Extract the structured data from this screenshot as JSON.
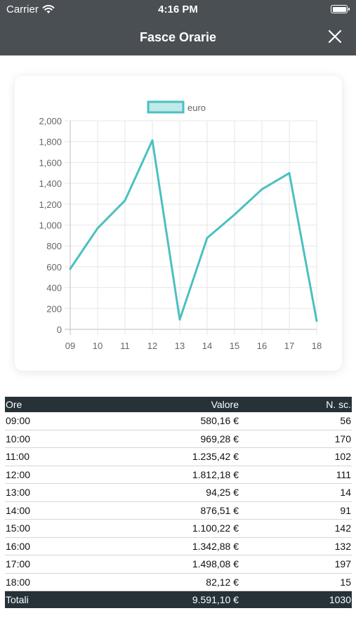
{
  "status_bar": {
    "carrier": "Carrier",
    "time": "4:16 PM"
  },
  "nav": {
    "title": "Fasce Orarie"
  },
  "chart_data": {
    "type": "line",
    "x": [
      "09",
      "10",
      "11",
      "12",
      "13",
      "14",
      "15",
      "16",
      "17",
      "18"
    ],
    "series": [
      {
        "name": "euro",
        "values": [
          580.16,
          969.28,
          1235.42,
          1812.18,
          94.25,
          876.51,
          1100.22,
          1342.88,
          1498.08,
          82.12
        ]
      }
    ],
    "yticks": [
      "0",
      "200",
      "400",
      "600",
      "800",
      "1,000",
      "1,200",
      "1,400",
      "1,600",
      "1,800",
      "2,000"
    ],
    "ylim": [
      0,
      2000
    ],
    "grid": true,
    "legend": "top-center",
    "color": "#4bc0c0"
  },
  "table": {
    "headers": [
      "Ore",
      "Valore",
      "N. sc."
    ],
    "rows": [
      [
        "09:00",
        "580,16 €",
        "56"
      ],
      [
        "10:00",
        "969,28 €",
        "170"
      ],
      [
        "11:00",
        "1.235,42 €",
        "102"
      ],
      [
        "12:00",
        "1.812,18 €",
        "111"
      ],
      [
        "13:00",
        "94,25 €",
        "14"
      ],
      [
        "14:00",
        "876,51 €",
        "91"
      ],
      [
        "15:00",
        "1.100,22 €",
        "142"
      ],
      [
        "16:00",
        "1.342,88 €",
        "132"
      ],
      [
        "17:00",
        "1.498,08 €",
        "197"
      ],
      [
        "18:00",
        "82,12 €",
        "15"
      ]
    ],
    "totals": [
      "Totali",
      "9.591,10 €",
      "1030"
    ]
  }
}
